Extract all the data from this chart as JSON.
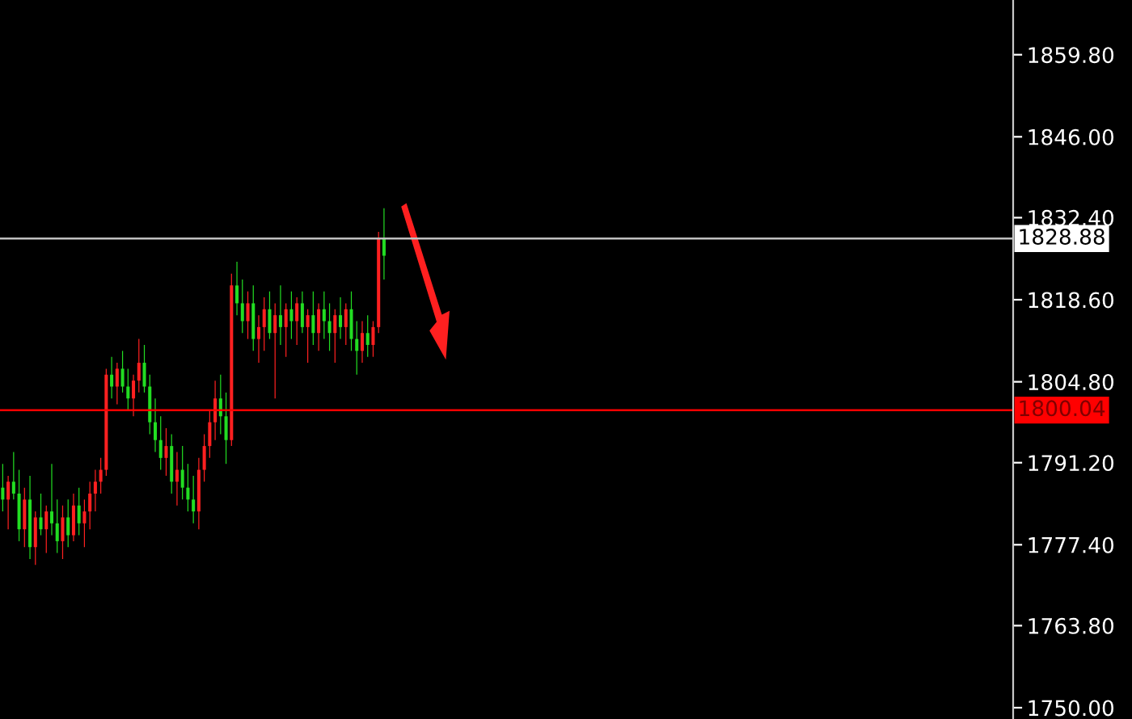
{
  "chart_data": {
    "type": "candlestick",
    "categories": [
      null,
      null,
      null,
      null,
      null,
      null,
      null,
      null,
      null,
      null,
      null,
      null,
      null,
      null,
      null,
      null,
      null,
      null,
      null,
      null,
      null,
      null,
      null,
      null,
      null,
      null,
      null,
      null,
      null,
      null,
      null,
      null,
      null,
      null,
      null,
      null,
      null,
      null,
      null,
      null,
      null,
      null,
      null,
      null,
      null,
      null,
      null,
      null,
      null,
      null,
      null,
      null,
      null,
      null,
      null,
      null,
      null,
      null,
      null,
      null,
      null,
      null,
      null,
      null,
      null,
      null,
      null,
      null,
      null,
      null,
      null,
      null,
      null,
      null,
      null,
      null,
      null,
      null,
      null,
      null,
      null,
      null,
      null,
      null,
      null,
      null,
      null,
      null,
      null,
      null,
      null,
      null,
      null,
      null,
      null,
      null,
      null,
      null,
      null,
      null,
      null,
      null,
      null,
      null,
      null,
      null,
      null,
      null,
      null,
      null,
      null,
      null,
      null,
      null,
      null,
      null,
      null,
      null,
      null,
      null,
      null,
      null,
      null,
      null,
      null,
      null,
      null,
      null,
      null,
      null,
      null,
      null,
      null,
      null,
      null,
      null,
      null,
      null,
      null,
      null,
      null,
      null,
      null,
      null,
      null,
      null,
      null,
      null,
      null,
      null,
      null,
      null,
      null,
      null,
      null,
      null,
      null,
      null,
      null,
      null,
      null,
      null,
      null,
      null,
      null,
      null,
      null,
      null,
      null,
      null,
      null,
      null,
      null,
      null,
      null,
      null,
      null,
      null,
      null,
      null,
      null,
      null,
      null,
      null,
      null,
      null
    ],
    "ohlc": [
      [
        1787,
        1791,
        1783,
        1785
      ],
      [
        1785,
        1789,
        1780,
        1788
      ],
      [
        1788,
        1793,
        1785,
        1786
      ],
      [
        1786,
        1790,
        1778,
        1780
      ],
      [
        1780,
        1787,
        1777,
        1785
      ],
      [
        1785,
        1789,
        1775,
        1777
      ],
      [
        1777,
        1783,
        1774,
        1782
      ],
      [
        1782,
        1786,
        1779,
        1780
      ],
      [
        1780,
        1784,
        1776,
        1783
      ],
      [
        1783,
        1791,
        1779,
        1781
      ],
      [
        1781,
        1785,
        1776,
        1778
      ],
      [
        1778,
        1784,
        1775,
        1782
      ],
      [
        1782,
        1785,
        1777,
        1779
      ],
      [
        1779,
        1786,
        1778,
        1784
      ],
      [
        1784,
        1787,
        1779,
        1781
      ],
      [
        1781,
        1785,
        1777,
        1783
      ],
      [
        1783,
        1788,
        1780,
        1786
      ],
      [
        1786,
        1790,
        1783,
        1788
      ],
      [
        1788,
        1792,
        1786,
        1790
      ],
      [
        1790,
        1807,
        1789,
        1806
      ],
      [
        1806,
        1809,
        1802,
        1804
      ],
      [
        1804,
        1808,
        1801,
        1807
      ],
      [
        1807,
        1810,
        1803,
        1804
      ],
      [
        1804,
        1807,
        1800,
        1802
      ],
      [
        1802,
        1806,
        1799,
        1805
      ],
      [
        1805,
        1812,
        1803,
        1808
      ],
      [
        1808,
        1811,
        1803,
        1804
      ],
      [
        1804,
        1806,
        1796,
        1798
      ],
      [
        1798,
        1802,
        1793,
        1795
      ],
      [
        1795,
        1799,
        1790,
        1792
      ],
      [
        1792,
        1797,
        1789,
        1794
      ],
      [
        1794,
        1796,
        1786,
        1788
      ],
      [
        1788,
        1793,
        1784,
        1790
      ],
      [
        1790,
        1794,
        1785,
        1787
      ],
      [
        1787,
        1791,
        1783,
        1785
      ],
      [
        1785,
        1789,
        1781,
        1783
      ],
      [
        1783,
        1792,
        1780,
        1790
      ],
      [
        1790,
        1796,
        1788,
        1794
      ],
      [
        1794,
        1800,
        1792,
        1798
      ],
      [
        1798,
        1805,
        1795,
        1802
      ],
      [
        1802,
        1806,
        1796,
        1799
      ],
      [
        1799,
        1803,
        1791,
        1795
      ],
      [
        1795,
        1823,
        1794,
        1821
      ],
      [
        1821,
        1825,
        1816,
        1818
      ],
      [
        1818,
        1822,
        1813,
        1815
      ],
      [
        1815,
        1820,
        1812,
        1818
      ],
      [
        1818,
        1821,
        1810,
        1812
      ],
      [
        1812,
        1816,
        1808,
        1814
      ],
      [
        1814,
        1819,
        1810,
        1817
      ],
      [
        1817,
        1820,
        1812,
        1813
      ],
      [
        1813,
        1818,
        1802,
        1816
      ],
      [
        1816,
        1821,
        1811,
        1814
      ],
      [
        1814,
        1818,
        1809,
        1817
      ],
      [
        1817,
        1820,
        1812,
        1815
      ],
      [
        1815,
        1819,
        1811,
        1818
      ],
      [
        1818,
        1820,
        1813,
        1814
      ],
      [
        1814,
        1817,
        1808,
        1816
      ],
      [
        1816,
        1820,
        1811,
        1813
      ],
      [
        1813,
        1818,
        1810,
        1817
      ],
      [
        1817,
        1820,
        1812,
        1815
      ],
      [
        1815,
        1818,
        1810,
        1813
      ],
      [
        1813,
        1817,
        1808,
        1816
      ],
      [
        1816,
        1819,
        1812,
        1814
      ],
      [
        1814,
        1818,
        1811,
        1817
      ],
      [
        1817,
        1820,
        1810,
        1812
      ],
      [
        1812,
        1815,
        1806,
        1810
      ],
      [
        1810,
        1815,
        1808,
        1813
      ],
      [
        1813,
        1816,
        1809,
        1811
      ],
      [
        1811,
        1815,
        1809,
        1814
      ],
      [
        1814,
        1830,
        1813,
        1829
      ],
      [
        1829,
        1834,
        1822,
        1826
      ],
      null,
      null,
      null,
      null,
      null,
      null,
      null,
      null,
      null,
      null,
      null,
      null,
      null,
      null,
      null,
      null,
      null,
      null,
      null,
      null,
      null,
      null,
      null,
      null,
      null,
      null,
      null,
      null,
      null,
      null,
      null,
      null,
      null,
      null,
      null,
      null,
      null,
      null,
      null,
      null,
      null,
      null,
      null,
      null,
      null,
      null,
      null,
      null,
      null,
      null,
      null,
      null,
      null,
      null,
      null,
      null,
      null,
      null,
      null,
      null,
      null,
      null,
      null,
      null,
      null,
      null,
      null,
      null,
      null,
      null,
      null,
      null,
      null,
      null,
      null,
      null,
      null,
      null,
      null,
      null,
      null,
      null,
      null,
      null,
      null,
      null,
      null,
      null,
      null,
      null,
      null,
      null,
      null,
      null,
      null,
      null,
      null,
      null,
      null,
      null,
      null,
      null,
      null,
      null,
      null,
      null,
      null,
      null,
      null,
      null,
      null,
      null,
      null,
      null,
      null
    ],
    "colors": [
      "#22dd22",
      "#ff2020",
      "#22dd22",
      "#22dd22",
      "#ff2020",
      "#22dd22",
      "#ff2020",
      "#22dd22",
      "#ff2020",
      "#22dd22",
      "#22dd22",
      "#ff2020",
      "#22dd22",
      "#ff2020",
      "#22dd22",
      "#ff2020",
      "#ff2020",
      "#ff2020",
      "#ff2020",
      "#ff2020",
      "#22dd22",
      "#ff2020",
      "#22dd22",
      "#22dd22",
      "#ff2020",
      "#ff2020",
      "#22dd22",
      "#22dd22",
      "#22dd22",
      "#22dd22",
      "#ff2020",
      "#22dd22",
      "#ff2020",
      "#22dd22",
      "#22dd22",
      "#22dd22",
      "#ff2020",
      "#ff2020",
      "#ff2020",
      "#ff2020",
      "#22dd22",
      "#22dd22",
      "#ff2020",
      "#22dd22",
      "#22dd22",
      "#ff2020",
      "#22dd22",
      "#ff2020",
      "#ff2020",
      "#22dd22",
      "#ff2020",
      "#22dd22",
      "#ff2020",
      "#22dd22",
      "#ff2020",
      "#22dd22",
      "#ff2020",
      "#22dd22",
      "#ff2020",
      "#22dd22",
      "#22dd22",
      "#ff2020",
      "#22dd22",
      "#ff2020",
      "#22dd22",
      "#22dd22",
      "#ff2020",
      "#22dd22",
      "#ff2020",
      "#ff2020",
      "#22dd22",
      null,
      null,
      null,
      null,
      null,
      null,
      null,
      null,
      null,
      null,
      null,
      null,
      null,
      null,
      null,
      null,
      null,
      null,
      null,
      null,
      null,
      null,
      null,
      null,
      null,
      null,
      null,
      null,
      null,
      null,
      null,
      null,
      null,
      null,
      null,
      null,
      null,
      null,
      null,
      null,
      null,
      null,
      null,
      null,
      null,
      null,
      null,
      null,
      null,
      null,
      null,
      null,
      null,
      null,
      null,
      null,
      null,
      null,
      null,
      null,
      null,
      null,
      null,
      null,
      null,
      null,
      null,
      null,
      null,
      null,
      null,
      null,
      null,
      null,
      null,
      null,
      null,
      null,
      null,
      null,
      null,
      null,
      null,
      null,
      null,
      null,
      null,
      null,
      null,
      null,
      null,
      null,
      null,
      null,
      null,
      null,
      null,
      null,
      null,
      null,
      null,
      null,
      null,
      null,
      null,
      null,
      null,
      null,
      null,
      null,
      null,
      null,
      null,
      null,
      null
    ],
    "ylim": [
      1748.1,
      1869.0
    ],
    "yticks": [
      {
        "value": 1750,
        "label": "1750.00"
      },
      {
        "value": 1763.8,
        "label": "1763.80"
      },
      {
        "value": 1777.4,
        "label": "1777.40"
      },
      {
        "value": 1791.2,
        "label": "1791.20"
      },
      {
        "value": 1804.8,
        "label": "1804.80"
      },
      {
        "value": 1818.6,
        "label": "1818.60"
      },
      {
        "value": 1832.4,
        "label": "1832.40"
      },
      {
        "value": 1846,
        "label": "1846.00"
      },
      {
        "value": 1859.8,
        "label": "1859.80"
      }
    ],
    "tick_labels": "y",
    "grid": false,
    "ref_lines": [
      {
        "axis": "y",
        "value": 1828.88,
        "label": "1828.88",
        "color": "#c0c0c0"
      },
      {
        "axis": "y",
        "value": 1800.04,
        "label": "1800.04",
        "color": "#ff0000"
      }
    ]
  }
}
